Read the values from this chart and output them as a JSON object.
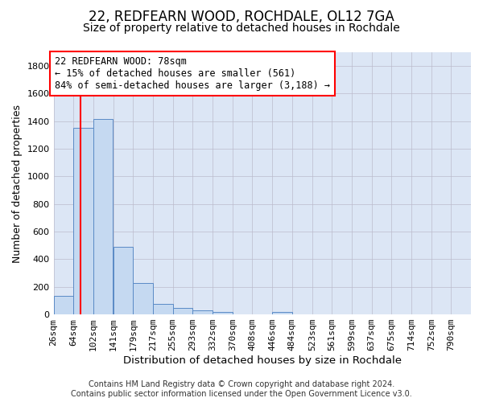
{
  "title": "22, REDFEARN WOOD, ROCHDALE, OL12 7GA",
  "subtitle": "Size of property relative to detached houses in Rochdale",
  "xlabel": "Distribution of detached houses by size in Rochdale",
  "ylabel": "Number of detached properties",
  "footer_line1": "Contains HM Land Registry data © Crown copyright and database right 2024.",
  "footer_line2": "Contains public sector information licensed under the Open Government Licence v3.0.",
  "bar_labels": [
    "26sqm",
    "64sqm",
    "102sqm",
    "141sqm",
    "179sqm",
    "217sqm",
    "255sqm",
    "293sqm",
    "332sqm",
    "370sqm",
    "408sqm",
    "446sqm",
    "484sqm",
    "523sqm",
    "561sqm",
    "599sqm",
    "637sqm",
    "675sqm",
    "714sqm",
    "752sqm",
    "790sqm"
  ],
  "bar_values": [
    135,
    1355,
    1415,
    490,
    225,
    75,
    45,
    28,
    18,
    0,
    0,
    20,
    0,
    0,
    0,
    0,
    0,
    0,
    0,
    0,
    0
  ],
  "bar_color": "#c5d9f1",
  "bar_edge_color": "#5a8ac6",
  "background_color": "#dce6f5",
  "grid_color": "#bbbbcc",
  "annotation_box_line1": "22 REDFEARN WOOD: 78sqm",
  "annotation_box_line2": "← 15% of detached houses are smaller (561)",
  "annotation_box_line3": "84% of semi-detached houses are larger (3,188) →",
  "red_line_x": 78,
  "ylim": [
    0,
    1900
  ],
  "yticks": [
    0,
    200,
    400,
    600,
    800,
    1000,
    1200,
    1400,
    1600,
    1800
  ],
  "title_fontsize": 12,
  "subtitle_fontsize": 10,
  "axis_label_fontsize": 9,
  "tick_fontsize": 8,
  "annotation_fontsize": 8.5,
  "footer_fontsize": 7,
  "bin_width": 38
}
